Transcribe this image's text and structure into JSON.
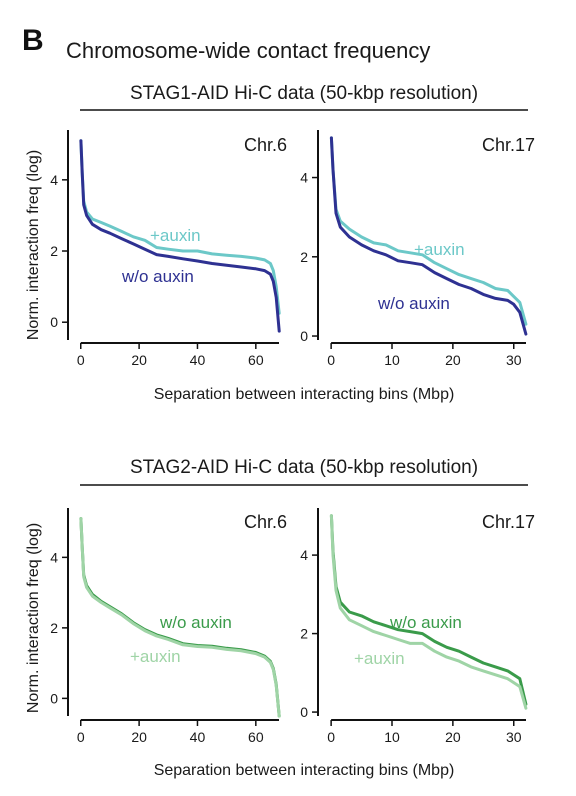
{
  "panel_letter": "B",
  "title": "Chromosome-wide contact frequency",
  "colors": {
    "stag1_auxin": "#6cc8c8",
    "stag1_wo": "#2e3192",
    "stag2_wo": "#3a9b4a",
    "stag2_auxin": "#9fd4a6"
  },
  "chart_data": [
    {
      "type": "line",
      "group": "STAG1-AID Hi-C data (50-kbp resolution)",
      "title": "Chr.6",
      "xlabel": "Separation between interacting bins (Mbp)",
      "ylabel": "Norm. interaction freq (log)",
      "xlim": [
        -3,
        70
      ],
      "ylim": [
        -0.5,
        5.4
      ],
      "xticks": [
        0,
        20,
        40,
        60
      ],
      "yticks": [
        0,
        2,
        4
      ],
      "series": [
        {
          "name": "+auxin",
          "color": "#6cc8c8",
          "x": [
            0.05,
            0.5,
            1,
            2,
            4,
            7,
            10,
            14,
            18,
            22,
            26,
            30,
            35,
            40,
            45,
            50,
            55,
            60,
            63,
            65,
            66,
            67,
            68
          ],
          "y": [
            5.1,
            4.2,
            3.4,
            3.1,
            2.9,
            2.8,
            2.7,
            2.55,
            2.4,
            2.3,
            2.1,
            2.05,
            2.0,
            2.0,
            1.92,
            1.88,
            1.85,
            1.8,
            1.75,
            1.65,
            1.45,
            1.0,
            0.25
          ]
        },
        {
          "name": "w/o auxin",
          "color": "#2e3192",
          "x": [
            0.05,
            0.5,
            1,
            2,
            4,
            7,
            10,
            14,
            18,
            22,
            26,
            30,
            35,
            40,
            45,
            50,
            55,
            60,
            63,
            65,
            66,
            67,
            68
          ],
          "y": [
            5.1,
            4.2,
            3.3,
            3.0,
            2.75,
            2.6,
            2.5,
            2.35,
            2.2,
            2.05,
            1.9,
            1.85,
            1.78,
            1.72,
            1.65,
            1.6,
            1.55,
            1.5,
            1.45,
            1.35,
            1.15,
            0.7,
            -0.25
          ]
        }
      ]
    },
    {
      "type": "line",
      "group": "STAG1-AID Hi-C data (50-kbp resolution)",
      "title": "Chr.17",
      "xlabel": "Separation between interacting bins (Mbp)",
      "ylabel": "",
      "xlim": [
        -1.5,
        33
      ],
      "ylim": [
        -0.1,
        5.2
      ],
      "xticks": [
        0,
        10,
        20,
        30
      ],
      "yticks": [
        0,
        2,
        4
      ],
      "series": [
        {
          "name": "+auxin",
          "color": "#6cc8c8",
          "x": [
            0.05,
            0.3,
            0.8,
            1.5,
            3,
            5,
            7,
            9,
            11,
            13,
            15,
            17,
            19,
            21,
            23,
            25,
            27,
            29,
            30,
            31,
            32
          ],
          "y": [
            5.0,
            4.2,
            3.2,
            2.9,
            2.7,
            2.5,
            2.35,
            2.3,
            2.15,
            2.1,
            2.05,
            1.85,
            1.7,
            1.55,
            1.45,
            1.35,
            1.2,
            1.15,
            1.0,
            0.85,
            0.3
          ]
        },
        {
          "name": "w/o auxin",
          "color": "#2e3192",
          "x": [
            0.05,
            0.3,
            0.8,
            1.5,
            3,
            5,
            7,
            9,
            11,
            13,
            15,
            17,
            19,
            21,
            23,
            25,
            27,
            29,
            30,
            31,
            32
          ],
          "y": [
            5.0,
            4.2,
            3.1,
            2.75,
            2.5,
            2.3,
            2.15,
            2.05,
            1.9,
            1.85,
            1.8,
            1.6,
            1.45,
            1.3,
            1.2,
            1.05,
            0.95,
            0.9,
            0.8,
            0.6,
            0.05
          ]
        }
      ]
    },
    {
      "type": "line",
      "group": "STAG2-AID Hi-C data (50-kbp resolution)",
      "title": "Chr.6",
      "xlabel": "Separation between interacting bins (Mbp)",
      "ylabel": "Norm. interaction freq (log)",
      "xlim": [
        -3,
        70
      ],
      "ylim": [
        -0.5,
        5.4
      ],
      "xticks": [
        0,
        20,
        40,
        60
      ],
      "yticks": [
        0,
        2,
        4
      ],
      "series": [
        {
          "name": "w/o auxin",
          "color": "#3a9b4a",
          "x": [
            0.05,
            0.5,
            1,
            2,
            4,
            7,
            10,
            14,
            18,
            22,
            26,
            30,
            35,
            40,
            45,
            50,
            55,
            60,
            63,
            65,
            66,
            67,
            68
          ],
          "y": [
            5.1,
            4.3,
            3.5,
            3.2,
            2.95,
            2.75,
            2.6,
            2.4,
            2.15,
            1.95,
            1.8,
            1.7,
            1.55,
            1.5,
            1.48,
            1.42,
            1.38,
            1.3,
            1.2,
            1.05,
            0.85,
            0.4,
            -0.5
          ]
        },
        {
          "name": "+auxin",
          "color": "#9fd4a6",
          "x": [
            0.05,
            0.5,
            1,
            2,
            4,
            7,
            10,
            14,
            18,
            22,
            26,
            30,
            35,
            40,
            45,
            50,
            55,
            60,
            63,
            65,
            66,
            67,
            68
          ],
          "y": [
            5.1,
            4.3,
            3.45,
            3.15,
            2.9,
            2.72,
            2.57,
            2.37,
            2.12,
            1.92,
            1.77,
            1.67,
            1.52,
            1.47,
            1.45,
            1.39,
            1.35,
            1.27,
            1.17,
            1.02,
            0.82,
            0.37,
            -0.5
          ]
        }
      ]
    },
    {
      "type": "line",
      "group": "STAG2-AID Hi-C data (50-kbp resolution)",
      "title": "Chr.17",
      "xlabel": "Separation between interacting bins (Mbp)",
      "ylabel": "",
      "xlim": [
        -1.5,
        33
      ],
      "ylim": [
        -0.1,
        5.2
      ],
      "xticks": [
        0,
        10,
        20,
        30
      ],
      "yticks": [
        0,
        2,
        4
      ],
      "series": [
        {
          "name": "w/o auxin",
          "color": "#3a9b4a",
          "x": [
            0.05,
            0.3,
            0.8,
            1.5,
            3,
            5,
            7,
            9,
            11,
            13,
            15,
            17,
            19,
            21,
            23,
            25,
            27,
            29,
            30,
            31,
            32
          ],
          "y": [
            5.0,
            4.1,
            3.2,
            2.8,
            2.55,
            2.45,
            2.3,
            2.2,
            2.1,
            2.05,
            2.0,
            1.8,
            1.65,
            1.55,
            1.4,
            1.25,
            1.15,
            1.05,
            0.95,
            0.85,
            0.2
          ]
        },
        {
          "name": "+auxin",
          "color": "#9fd4a6",
          "x": [
            0.05,
            0.3,
            0.8,
            1.5,
            3,
            5,
            7,
            9,
            11,
            13,
            15,
            17,
            19,
            21,
            23,
            25,
            27,
            29,
            30,
            31,
            32
          ],
          "y": [
            5.0,
            4.0,
            3.1,
            2.65,
            2.35,
            2.2,
            2.05,
            1.95,
            1.85,
            1.75,
            1.75,
            1.55,
            1.4,
            1.3,
            1.15,
            1.05,
            0.95,
            0.85,
            0.75,
            0.65,
            0.1
          ]
        }
      ]
    }
  ]
}
